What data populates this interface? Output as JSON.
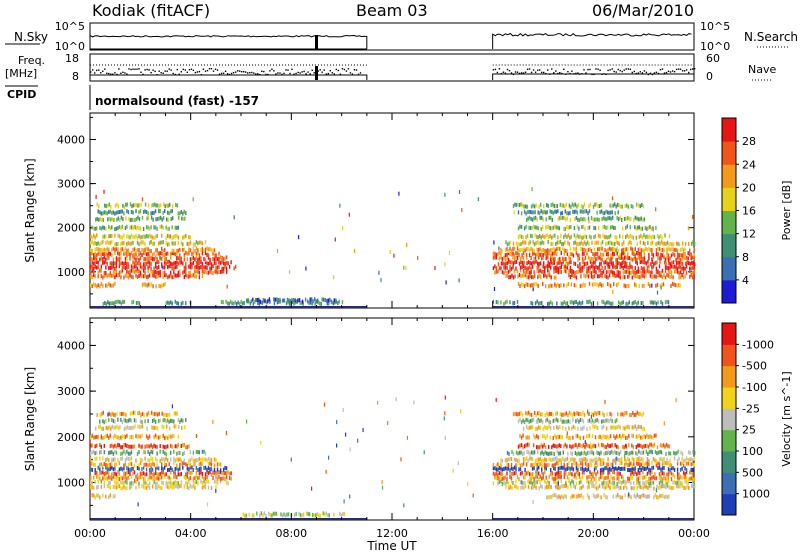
{
  "header": {
    "station": "Kodiak (fitACF)",
    "beam": "Beam 03",
    "date": "06/Mar/2010"
  },
  "top_panels": {
    "nsky_label": "N.Sky",
    "nsearch_label": "N.Search",
    "nsky_ticks": [
      "10^5",
      "10^0"
    ],
    "freq_label": "Freq.",
    "freq_unit": "[MHz]",
    "freq_ticks": [
      "18",
      "8"
    ],
    "nave_ticks": [
      "60",
      "0"
    ],
    "nave_label": "Nave",
    "cpid_label": "CPID",
    "cpid_text": "normalsound (fast) -157",
    "data_gap_hours": [
      11.0,
      16.0
    ]
  },
  "x_axis": {
    "label": "Time UT",
    "ticks": [
      "00:00",
      "04:00",
      "08:00",
      "12:00",
      "16:00",
      "20:00",
      "00:00"
    ],
    "range_hours": [
      0,
      24
    ]
  },
  "chart_data": [
    {
      "type": "heatmap",
      "name": "power",
      "ylabel": "Slant Range [km]",
      "ylim": [
        180,
        4600
      ],
      "yticks": [
        1000,
        2000,
        3000,
        4000
      ],
      "colorbar": {
        "label": "Power [dB]",
        "ticks": [
          "4",
          "8",
          "12",
          "16",
          "20",
          "24",
          "28"
        ],
        "colors": [
          "#1c1cd4",
          "#3b6fb3",
          "#3f8f74",
          "#61b34a",
          "#e6d21a",
          "#f39a1a",
          "#f05418",
          "#e81515"
        ]
      },
      "scatter_bands_km": [
        {
          "range": 300,
          "hours": [
            [
              0.5,
              2.0
            ],
            [
              3.0,
              4.0
            ],
            [
              5.2,
              10.0
            ],
            [
              16.0,
              17.0
            ],
            [
              17.5,
              23.0
            ]
          ],
          "level": 2
        },
        {
          "range": 350,
          "hours": [
            [
              6.2,
              9.8
            ]
          ],
          "level": 1
        },
        {
          "range": 700,
          "hours": [
            [
              0.0,
              1.0
            ],
            [
              2.0,
              3.0
            ],
            [
              17.0,
              23.5
            ]
          ],
          "level": 5
        },
        {
          "range": 900,
          "hours": [
            [
              0.0,
              4.5
            ],
            [
              16.5,
              18.5
            ],
            [
              19.0,
              24.0
            ]
          ],
          "level": 6
        },
        {
          "range": 1000,
          "hours": [
            [
              0.0,
              5.5
            ],
            [
              16.0,
              24.0
            ]
          ],
          "level": 6
        },
        {
          "range": 1100,
          "hours": [
            [
              0.0,
              5.8
            ],
            [
              16.0,
              24.0
            ]
          ],
          "level": 7
        },
        {
          "range": 1200,
          "hours": [
            [
              0.0,
              5.6
            ],
            [
              16.2,
              24.0
            ]
          ],
          "level": 7
        },
        {
          "range": 1300,
          "hours": [
            [
              0.0,
              5.4
            ],
            [
              16.0,
              24.0
            ]
          ],
          "level": 6
        },
        {
          "range": 1400,
          "hours": [
            [
              0.0,
              5.2
            ],
            [
              16.0,
              24.0
            ]
          ],
          "level": 6
        },
        {
          "range": 1500,
          "hours": [
            [
              0.0,
              5.0
            ],
            [
              16.3,
              24.0
            ]
          ],
          "level": 5
        },
        {
          "range": 1650,
          "hours": [
            [
              0.0,
              4.6
            ],
            [
              16.5,
              24.0
            ]
          ],
          "level": 4
        },
        {
          "range": 1800,
          "hours": [
            [
              0.0,
              4.0
            ],
            [
              17.0,
              23.0
            ]
          ],
          "level": 4
        },
        {
          "range": 2000,
          "hours": [
            [
              0.0,
              3.5
            ],
            [
              17.0,
              22.5
            ]
          ],
          "level": 3
        },
        {
          "range": 2200,
          "hours": [
            [
              0.2,
              3.8
            ],
            [
              17.2,
              22.0
            ]
          ],
          "level": 3
        },
        {
          "range": 2350,
          "hours": [
            [
              0.3,
              3.8
            ],
            [
              17.0,
              21.0
            ]
          ],
          "level": 2
        },
        {
          "range": 2500,
          "hours": [
            [
              0.2,
              3.5
            ],
            [
              16.8,
              22.0
            ]
          ],
          "level": 3
        }
      ]
    },
    {
      "type": "heatmap",
      "name": "velocity",
      "ylabel": "Slant Range [km]",
      "ylim": [
        180,
        4600
      ],
      "yticks": [
        1000,
        2000,
        3000,
        4000
      ],
      "colorbar": {
        "label": "Velocity [m s^-1]",
        "ticks": [
          "1000",
          "500",
          "100",
          "25",
          "-25",
          "-100",
          "-500",
          "-1000"
        ],
        "colors": [
          "#1e3fb5",
          "#3b6fb3",
          "#3f8f74",
          "#61b34a",
          "#bdbdbd",
          "#f3d21a",
          "#f39a1a",
          "#f05418",
          "#e81515"
        ]
      },
      "scatter_bands_km": [
        {
          "range": 300,
          "hours": [
            [
              6.0,
              10.2
            ]
          ],
          "level": 4
        },
        {
          "range": 700,
          "hours": [
            [
              0.0,
              1.0
            ],
            [
              18.0,
              23.0
            ]
          ],
          "level": 5
        },
        {
          "range": 900,
          "hours": [
            [
              0.0,
              5.0
            ],
            [
              16.5,
              24.0
            ]
          ],
          "level": 5
        },
        {
          "range": 1000,
          "hours": [
            [
              0.0,
              5.5
            ],
            [
              16.0,
              24.0
            ]
          ],
          "level": 4
        },
        {
          "range": 1100,
          "hours": [
            [
              0.0,
              5.6
            ],
            [
              16.0,
              24.0
            ]
          ],
          "level": 6
        },
        {
          "range": 1200,
          "hours": [
            [
              0.0,
              5.6
            ],
            [
              16.0,
              24.0
            ]
          ],
          "level": 7
        },
        {
          "range": 1300,
          "hours": [
            [
              0.0,
              5.4
            ],
            [
              16.0,
              24.0
            ]
          ],
          "level": 0
        },
        {
          "range": 1400,
          "hours": [
            [
              0.0,
              5.2
            ],
            [
              16.0,
              24.0
            ]
          ],
          "level": 6
        },
        {
          "range": 1500,
          "hours": [
            [
              0.0,
              5.0
            ],
            [
              16.3,
              24.0
            ]
          ],
          "level": 5
        },
        {
          "range": 1650,
          "hours": [
            [
              0.0,
              4.6
            ],
            [
              16.5,
              24.0
            ]
          ],
          "level": 3
        },
        {
          "range": 1800,
          "hours": [
            [
              0.0,
              4.0
            ],
            [
              17.0,
              23.0
            ]
          ],
          "level": 7
        },
        {
          "range": 2000,
          "hours": [
            [
              0.0,
              3.5
            ],
            [
              17.0,
              22.5
            ]
          ],
          "level": 6
        },
        {
          "range": 2200,
          "hours": [
            [
              0.2,
              3.8
            ],
            [
              17.2,
              22.0
            ]
          ],
          "level": 5
        },
        {
          "range": 2350,
          "hours": [
            [
              0.3,
              3.8
            ],
            [
              17.0,
              21.0
            ]
          ],
          "level": 3
        },
        {
          "range": 2500,
          "hours": [
            [
              0.2,
              3.5
            ],
            [
              16.8,
              22.0
            ]
          ],
          "level": 6
        }
      ]
    }
  ]
}
